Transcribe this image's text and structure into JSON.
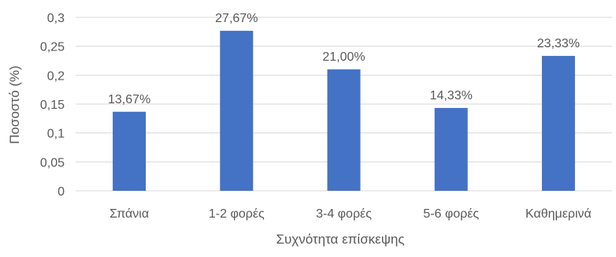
{
  "chart_data": {
    "type": "bar",
    "title": "",
    "xlabel": "Συχνότητα επίσκεψης",
    "ylabel": "Ποσοστό (%)",
    "ylim": [
      0,
      0.3
    ],
    "yticks": [
      "0",
      "0,05",
      "0,1",
      "0,15",
      "0,2",
      "0,25",
      "0,3"
    ],
    "ytick_values": [
      0,
      0.05,
      0.1,
      0.15,
      0.2,
      0.25,
      0.3
    ],
    "categories": [
      "Σπάνια",
      "1-2 φορές",
      "3-4 φορές",
      "5-6 φορές",
      "Καθημερινά"
    ],
    "values": [
      0.1367,
      0.2767,
      0.21,
      0.1433,
      0.2333
    ],
    "data_labels": [
      "13,67%",
      "27,67%",
      "21,00%",
      "14,33%",
      "23,33%"
    ],
    "bar_color": "#4472c4",
    "gridline_color": "#d9d9d9",
    "grid": true,
    "legend": "none"
  }
}
